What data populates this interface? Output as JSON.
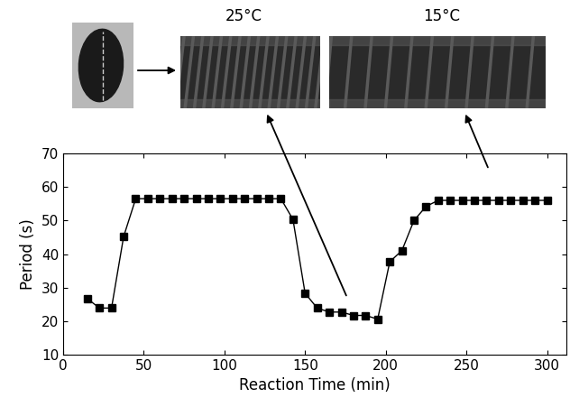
{
  "chart_data": {
    "type": "line",
    "x_label": "Reaction Time (min)",
    "y_label": "Period (s)",
    "x": [
      15,
      22.5,
      30,
      37.5,
      45,
      52.5,
      60,
      67.5,
      75,
      82.5,
      90,
      97.5,
      105,
      112.5,
      120,
      127.5,
      135,
      142.5,
      150,
      157.5,
      165,
      172.5,
      180,
      187.5,
      195,
      202.5,
      210,
      217.5,
      225,
      232.5,
      240,
      247.5,
      255,
      262.5,
      270,
      277.5,
      285,
      292.5,
      300
    ],
    "values": [
      26.7,
      23.9,
      23.9,
      45.2,
      56.5,
      56.5,
      56.5,
      56.5,
      56.5,
      56.5,
      56.5,
      56.5,
      56.5,
      56.5,
      56.5,
      56.5,
      56.5,
      50.3,
      28.3,
      23.9,
      22.7,
      22.7,
      21.7,
      21.7,
      20.6,
      37.7,
      41.0,
      50.0,
      54.2,
      56.0,
      56.0,
      56.0,
      56.0,
      56.0,
      56.0,
      56.0,
      56.0,
      56.0,
      56.0
    ],
    "color": "#000000",
    "marker": "square",
    "line_style": "solid",
    "xlim": [
      0,
      312
    ],
    "xticks": [
      0,
      50,
      100,
      150,
      200,
      250,
      300
    ],
    "ylim": [
      10,
      70
    ],
    "yticks": [
      10,
      20,
      30,
      40,
      50,
      60,
      70
    ],
    "annotations": [
      "25°C",
      "15°C"
    ]
  }
}
